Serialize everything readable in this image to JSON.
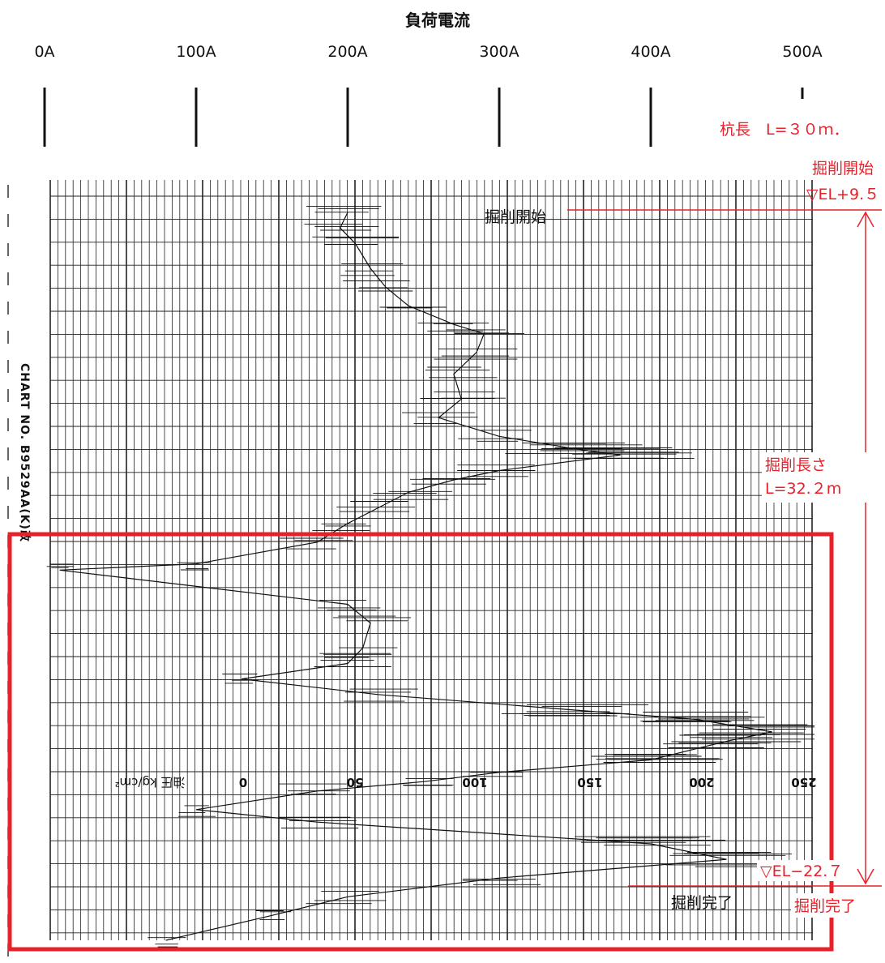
{
  "header": {
    "title": "負荷電流",
    "ticks": [
      "0A",
      "100A",
      "200A",
      "300A",
      "400A",
      "500A"
    ]
  },
  "chart_data": {
    "type": "line",
    "title": "負荷電流",
    "x_axis": {
      "label": "負荷電流",
      "ticks": [
        "0A",
        "100A",
        "200A",
        "300A",
        "400A",
        "500A"
      ],
      "range": [
        0,
        500
      ],
      "unit": "A"
    },
    "bottom_scale": {
      "label": "油圧 kg/cm²",
      "ticks": [
        "0",
        "50",
        "100",
        "150",
        "200",
        "250"
      ]
    },
    "chart_no": "CHART NO. B9529AA(K)改",
    "grid": true,
    "series": [
      {
        "name": "",
        "note": "depth increases downward; x in A",
        "points": [
          [
            200,
            0.0
          ],
          [
            195,
            0.5
          ],
          [
            205,
            1.0
          ],
          [
            215,
            1.8
          ],
          [
            225,
            2.4
          ],
          [
            240,
            3.0
          ],
          [
            270,
            3.6
          ],
          [
            290,
            3.9
          ],
          [
            285,
            4.5
          ],
          [
            270,
            5.2
          ],
          [
            275,
            6.0
          ],
          [
            260,
            6.6
          ],
          [
            300,
            7.2
          ],
          [
            350,
            7.6
          ],
          [
            380,
            7.8
          ],
          [
            300,
            8.3
          ],
          [
            270,
            8.6
          ],
          [
            240,
            9.0
          ],
          [
            220,
            9.5
          ],
          [
            200,
            10.0
          ],
          [
            180,
            10.6
          ],
          [
            100,
            11.3
          ],
          [
            10,
            11.5
          ],
          [
            200,
            12.6
          ],
          [
            215,
            13.2
          ],
          [
            210,
            14.0
          ],
          [
            200,
            14.5
          ],
          [
            130,
            15.0
          ],
          [
            220,
            15.5
          ],
          [
            350,
            16.0
          ],
          [
            430,
            16.3
          ],
          [
            480,
            16.7
          ],
          [
            450,
            17.0
          ],
          [
            400,
            17.6
          ],
          [
            300,
            18.0
          ],
          [
            250,
            18.3
          ],
          [
            180,
            18.6
          ],
          [
            100,
            19.2
          ],
          [
            180,
            19.6
          ],
          [
            400,
            20.3
          ],
          [
            450,
            20.8
          ],
          [
            300,
            21.4
          ],
          [
            200,
            22.0
          ],
          [
            150,
            22.6
          ],
          [
            80,
            23.4
          ]
        ]
      }
    ]
  },
  "annotations": {
    "pile_length": "杭長　L=３０ｍ．",
    "start_label": "掘削開始",
    "start_el": "▽EL+9.５",
    "length_label": "掘削長さ",
    "length_value": "L=32.２m",
    "end_el": "▽EL−22.７",
    "end_label": "掘削完了",
    "chart_start_stamp": "掘削開始",
    "chart_end_stamp": "掘削完了"
  },
  "colors": {
    "accent": "#e8202a",
    "ink": "#111111"
  }
}
